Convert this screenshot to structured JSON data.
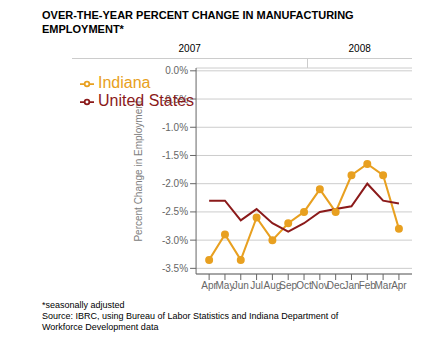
{
  "chart_data": {
    "type": "line",
    "title": "OVER-THE-YEAR PERCENT CHANGE IN MANUFACTURING\nEMPLOYMENT*",
    "y_label": "Percent Change in Employment",
    "categories": [
      "Apr",
      "May",
      "Jun",
      "Jul",
      "Aug",
      "Sep",
      "Oct",
      "Nov",
      "Dec",
      "Jan",
      "Feb",
      "Mar",
      "Apr"
    ],
    "series": [
      {
        "name": "Indiana",
        "color": "#e8a020",
        "marker": "circle",
        "values": [
          -3.35,
          -2.9,
          -3.35,
          -2.6,
          -3.0,
          -2.7,
          -2.5,
          -2.1,
          -2.5,
          -1.85,
          -1.65,
          -1.85,
          -2.8
        ]
      },
      {
        "name": "United States",
        "color": "#8b1a1a",
        "marker": "none",
        "values": [
          -2.3,
          -2.3,
          -2.65,
          -2.45,
          -2.7,
          -2.85,
          -2.7,
          -2.5,
          -2.45,
          -2.4,
          -2.0,
          -2.3,
          -2.35
        ]
      }
    ],
    "ylim": [
      -3.6,
      0.05
    ],
    "yticks": [
      {
        "value": 0.0,
        "label": "0.0%"
      },
      {
        "value": -0.5,
        "label": "-0.5%"
      },
      {
        "value": -1.0,
        "label": "-1.0%"
      },
      {
        "value": -1.5,
        "label": "-1.5%"
      },
      {
        "value": -2.0,
        "label": "-2.0%"
      },
      {
        "value": -2.5,
        "label": "-2.5%"
      },
      {
        "value": -3.0,
        "label": "-3.0%"
      },
      {
        "value": -3.5,
        "label": "-3.5%"
      }
    ],
    "grid": true,
    "legend": "upper left",
    "annotations": [
      {
        "text": "2007",
        "start": 0,
        "end": 8
      },
      {
        "text": "2008",
        "start": 9,
        "end": 12
      },
      {
        "text": "*seasonally adjusted"
      },
      {
        "text": "Source: IBRC, using Bureau of Labor Statistics and Indiana Department of\nWorkforce Development data"
      }
    ]
  }
}
